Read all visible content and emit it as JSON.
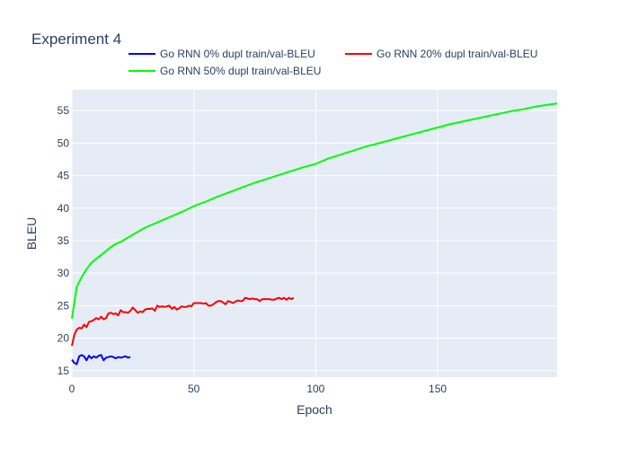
{
  "chart_data": {
    "type": "line",
    "title": "Experiment 4",
    "xlabel": "Epoch",
    "ylabel": "BLEU",
    "xlim": [
      0,
      199
    ],
    "ylim": [
      14.0,
      58.2
    ],
    "xticks": [
      0,
      50,
      100,
      150
    ],
    "yticks": [
      15,
      20,
      25,
      30,
      35,
      40,
      45,
      50,
      55
    ],
    "grid": true,
    "legend_position": "top",
    "plot_background": "#e5ecf6",
    "series": [
      {
        "name": "Go RNN 0% dupl train/val-BLEU",
        "color": "#0000ff",
        "x": [
          0,
          1,
          2,
          3,
          4,
          5,
          6,
          7,
          8,
          9,
          10,
          11,
          12,
          13,
          14,
          15,
          16,
          17,
          18,
          19,
          20,
          21,
          22,
          23,
          24
        ],
        "y": [
          16.7,
          16.2,
          16.0,
          17.2,
          17.4,
          17.2,
          16.6,
          17.3,
          16.9,
          17.2,
          17.0,
          17.3,
          17.4,
          16.6,
          17.0,
          17.1,
          17.2,
          17.1,
          16.9,
          17.1,
          17.0,
          17.1,
          17.2,
          17.0,
          17.1
        ]
      },
      {
        "name": "Go RNN 20% dupl train/val-BLEU",
        "color": "#ff0000",
        "x": [
          0,
          1,
          2,
          3,
          4,
          5,
          6,
          7,
          8,
          9,
          10,
          11,
          12,
          13,
          14,
          15,
          16,
          17,
          18,
          19,
          20,
          21,
          22,
          23,
          24,
          25,
          26,
          27,
          28,
          29,
          30,
          31,
          32,
          33,
          34,
          35,
          36,
          37,
          38,
          39,
          40,
          41,
          42,
          43,
          44,
          45,
          46,
          47,
          48,
          49,
          50,
          51,
          52,
          53,
          54,
          55,
          56,
          57,
          58,
          59,
          60,
          61,
          62,
          63,
          64,
          65,
          66,
          67,
          68,
          69,
          70,
          71,
          72,
          73,
          74,
          75,
          76,
          77,
          78,
          79,
          80,
          81,
          82,
          83,
          84,
          85,
          86,
          87,
          88,
          89,
          90,
          91
        ],
        "y": [
          18.8,
          20.5,
          21.3,
          21.6,
          21.5,
          22.1,
          21.7,
          22.5,
          22.6,
          22.8,
          23.1,
          22.9,
          23.3,
          22.9,
          23.1,
          23.8,
          23.9,
          23.7,
          23.8,
          23.5,
          24.3,
          24.0,
          24.0,
          23.9,
          24.2,
          24.7,
          24.3,
          23.9,
          24.1,
          24.0,
          24.4,
          24.5,
          24.5,
          24.6,
          24.2,
          25.0,
          24.8,
          24.9,
          24.8,
          24.9,
          25.0,
          24.5,
          24.8,
          24.4,
          24.6,
          24.9,
          24.8,
          24.8,
          25.0,
          24.9,
          25.4,
          25.4,
          25.4,
          25.4,
          25.3,
          25.4,
          25.0,
          25.0,
          25.2,
          25.5,
          25.7,
          25.7,
          25.5,
          25.2,
          25.7,
          25.6,
          25.4,
          25.6,
          25.8,
          25.7,
          25.7,
          26.2,
          26.1,
          26.0,
          26.1,
          26.0,
          26.0,
          25.7,
          26.0,
          26.0,
          26.0,
          26.0,
          25.9,
          25.9,
          26.1,
          26.2,
          26.0,
          26.2,
          25.9,
          26.2,
          26.0,
          26.2
        ]
      },
      {
        "name": "Go RNN 50% dupl train/val-BLEU",
        "color": "#00ff00",
        "x": [
          0,
          2,
          4,
          6,
          8,
          10,
          12,
          14,
          16,
          18,
          20,
          25,
          30,
          35,
          40,
          45,
          50,
          55,
          60,
          65,
          70,
          75,
          80,
          85,
          90,
          95,
          100,
          105,
          110,
          115,
          120,
          125,
          130,
          135,
          140,
          145,
          150,
          155,
          160,
          165,
          170,
          175,
          180,
          185,
          190,
          195,
          199
        ],
        "y": [
          23.0,
          27.9,
          29.4,
          30.6,
          31.6,
          32.2,
          32.8,
          33.4,
          34.0,
          34.5,
          34.8,
          35.9,
          37.0,
          37.8,
          38.6,
          39.4,
          40.3,
          41.0,
          41.8,
          42.5,
          43.2,
          43.9,
          44.5,
          45.1,
          45.7,
          46.3,
          46.8,
          47.6,
          48.2,
          48.8,
          49.4,
          49.9,
          50.4,
          50.9,
          51.4,
          51.9,
          52.4,
          52.9,
          53.3,
          53.7,
          54.1,
          54.5,
          54.9,
          55.2,
          55.6,
          55.9,
          56.1
        ]
      }
    ]
  }
}
